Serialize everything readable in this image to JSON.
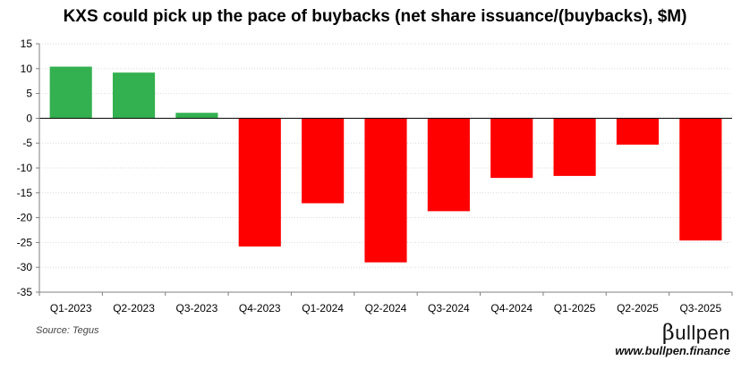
{
  "chart_data": {
    "type": "bar",
    "title": "KXS could pick up the pace of buybacks (net share issuance/(buybacks), $M)",
    "xlabel": "",
    "ylabel": "",
    "categories": [
      "Q1-2023",
      "Q2-2023",
      "Q3-2023",
      "Q4-2023",
      "Q1-2024",
      "Q2-2024",
      "Q3-2024",
      "Q4-2024",
      "Q1-2025",
      "Q2-2025",
      "Q3-2025"
    ],
    "values": [
      10.4,
      9.2,
      1.1,
      -25.8,
      -17.1,
      -29.0,
      -18.7,
      -12.0,
      -11.6,
      -5.3,
      -24.6
    ],
    "ylim": [
      -35,
      15
    ],
    "yticks": [
      15,
      10,
      5,
      0,
      -5,
      -10,
      -15,
      -20,
      -25,
      -30,
      -35
    ],
    "grid": true,
    "colors": {
      "positive": "#33b04f",
      "negative": "#ff0000",
      "grid": "#d9d9d9",
      "axis": "#7f7f7f"
    }
  },
  "footer": {
    "source": "Source: Tegus",
    "brand_beta": "β",
    "brand_rest": "ullpen",
    "website": "www.bullpen.finance"
  }
}
